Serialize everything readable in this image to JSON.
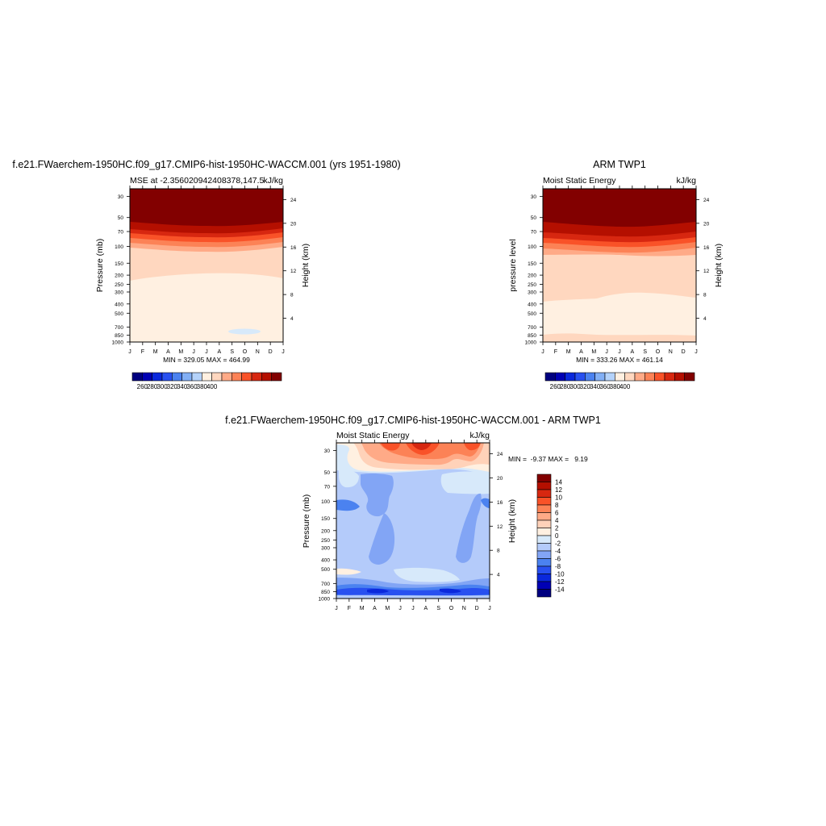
{
  "months": [
    "J",
    "F",
    "M",
    "A",
    "M",
    "J",
    "J",
    "A",
    "S",
    "O",
    "N",
    "D",
    "J"
  ],
  "pressure_ticks": [
    "30",
    "50",
    "70",
    "100",
    "150",
    "200",
    "250",
    "300",
    "400",
    "500",
    "700",
    "850",
    "1000"
  ],
  "height_ticks": [
    "24",
    "20",
    "16",
    "12",
    "8",
    "4"
  ],
  "colors": {
    "abs_palette": [
      "#000080",
      "#0000b4",
      "#0a28dc",
      "#2850f0",
      "#4b82f0",
      "#82aff5",
      "#b4d2fa",
      "#fff0e1",
      "#ffd7bf",
      "#ffaa87",
      "#fc8256",
      "#f95228",
      "#d72710",
      "#b40f00",
      "#820000"
    ],
    "diff_palette": [
      "#000080",
      "#0000b4",
      "#0a28dc",
      "#2850f0",
      "#4b82f0",
      "#82a5f5",
      "#b4cbfa",
      "#d7e9fa",
      "#fff0e1",
      "#ffd2b9",
      "#ffaa87",
      "#fc8256",
      "#f95228",
      "#d72710",
      "#b40f00",
      "#820000"
    ]
  },
  "chart_data": [
    {
      "type": "heatmap",
      "panel": "model",
      "title": "f.e21.FWaerchem-1950HC.f09_g17.CMIP6-hist-1950HC-WACCM.001 (yrs 1951-1980)",
      "left_string": "MSE at -2.356020942408378,147.5",
      "right_string": "kJ/kg",
      "ylabel": "Pressure (mb)",
      "ylabel_right": "Height (km)",
      "min_max": "MIN = 329.05 MAX = 464.99",
      "colorbar_labels": [
        "260",
        "280",
        "300",
        "320",
        "340",
        "360",
        "380",
        "400"
      ],
      "boundaries_hPa": [
        210,
        118,
        100,
        90,
        80,
        72,
        64,
        56
      ],
      "ylim": [
        1000,
        25
      ]
    },
    {
      "type": "heatmap",
      "panel": "observation",
      "title": "ARM TWP1",
      "left_string": "Moist Static Energy",
      "right_string": "kJ/kg",
      "ylabel": "pressure level",
      "ylabel_right": "Height (km)",
      "min_max": "MIN = 333.26 MAX = 461.14",
      "colorbar_labels": [
        "260",
        "280",
        "300",
        "320",
        "340",
        "360",
        "380",
        "400"
      ],
      "boundaries_hPa": [
        870,
        400,
        125,
        100,
        90,
        80,
        72,
        64,
        56
      ],
      "ylim": [
        1000,
        25
      ]
    },
    {
      "type": "heatmap",
      "panel": "difference",
      "title": "f.e21.FWaerchem-1950HC.f09_g17.CMIP6-hist-1950HC-WACCM.001 - ARM TWP1",
      "left_string": "Moist Static Energy",
      "right_string": "kJ/kg",
      "ylabel": "Pressure (mb)",
      "ylabel_right": "Height (km)",
      "min_max": "MIN =  -9.37 MAX =   9.19",
      "colorbar_labels": [
        "14",
        "12",
        "10",
        "8",
        "6",
        "4",
        "2",
        "0",
        "-2",
        "-4",
        "-6",
        "-8",
        "-10",
        "-12",
        "-14"
      ],
      "ylim": [
        1000,
        25
      ]
    }
  ]
}
